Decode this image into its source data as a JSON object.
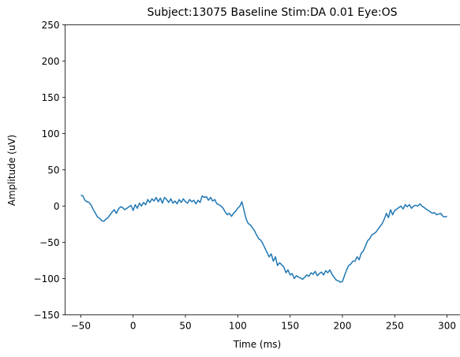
{
  "chart_data": {
    "type": "line",
    "title": "Subject:13075 Baseline Stim:DA 0.01 Eye:OS",
    "xlabel": "Time (ms)",
    "ylabel": "Amplitude (uV)",
    "xlim": [
      -65,
      315
    ],
    "ylim": [
      -150,
      250
    ],
    "xticks": [
      -50,
      0,
      50,
      100,
      150,
      200,
      250,
      300
    ],
    "yticks": [
      -150,
      -100,
      -50,
      0,
      50,
      100,
      150,
      200,
      250
    ],
    "grid": false,
    "series": [
      {
        "color": "#1f77b4",
        "x": [
          -50,
          -48,
          -46,
          -44,
          -42,
          -40,
          -38,
          -36,
          -34,
          -32,
          -30,
          -28,
          -26,
          -24,
          -22,
          -20,
          -18,
          -16,
          -14,
          -12,
          -10,
          -8,
          -6,
          -4,
          -2,
          0,
          2,
          4,
          6,
          8,
          10,
          12,
          14,
          16,
          18,
          20,
          22,
          24,
          26,
          28,
          30,
          32,
          34,
          36,
          38,
          40,
          42,
          44,
          46,
          48,
          50,
          52,
          54,
          56,
          58,
          60,
          62,
          64,
          66,
          68,
          70,
          72,
          74,
          76,
          78,
          80,
          82,
          84,
          86,
          88,
          90,
          92,
          94,
          96,
          98,
          100,
          102,
          104,
          106,
          108,
          110,
          112,
          114,
          116,
          118,
          120,
          122,
          124,
          126,
          128,
          130,
          132,
          134,
          136,
          138,
          140,
          142,
          144,
          146,
          148,
          150,
          152,
          154,
          156,
          158,
          160,
          162,
          164,
          166,
          168,
          170,
          172,
          174,
          176,
          178,
          180,
          182,
          184,
          186,
          188,
          190,
          192,
          194,
          196,
          198,
          200,
          202,
          204,
          206,
          208,
          210,
          212,
          214,
          216,
          218,
          220,
          222,
          224,
          226,
          228,
          230,
          232,
          234,
          236,
          238,
          240,
          242,
          244,
          246,
          248,
          250,
          252,
          254,
          256,
          258,
          260,
          262,
          264,
          266,
          268,
          270,
          272,
          274,
          276,
          278,
          280,
          282,
          284,
          286,
          288,
          290,
          292,
          294,
          296,
          298,
          300
        ],
        "values": [
          15,
          14,
          8,
          6,
          5,
          1,
          -5,
          -10,
          -15,
          -17,
          -20,
          -21,
          -18,
          -16,
          -12,
          -8,
          -5,
          -10,
          -4,
          -1,
          -2,
          -5,
          -3,
          -1,
          1,
          -6,
          2,
          -3,
          4,
          0,
          5,
          2,
          9,
          5,
          10,
          7,
          12,
          6,
          11,
          4,
          12,
          9,
          5,
          10,
          4,
          7,
          3,
          9,
          5,
          10,
          6,
          4,
          9,
          6,
          8,
          3,
          8,
          5,
          14,
          12,
          13,
          8,
          12,
          7,
          9,
          3,
          2,
          0,
          -3,
          -8,
          -12,
          -10,
          -14,
          -10,
          -7,
          -3,
          0,
          6,
          -6,
          -18,
          -24,
          -26,
          -30,
          -34,
          -40,
          -45,
          -47,
          -52,
          -58,
          -64,
          -70,
          -66,
          -76,
          -70,
          -82,
          -78,
          -81,
          -84,
          -92,
          -88,
          -95,
          -93,
          -100,
          -96,
          -98,
          -99,
          -101,
          -98,
          -95,
          -97,
          -92,
          -94,
          -90,
          -96,
          -93,
          -91,
          -95,
          -89,
          -92,
          -88,
          -94,
          -98,
          -102,
          -103,
          -105,
          -104,
          -96,
          -88,
          -82,
          -80,
          -76,
          -76,
          -70,
          -74,
          -65,
          -62,
          -55,
          -48,
          -45,
          -40,
          -38,
          -36,
          -32,
          -28,
          -24,
          -18,
          -10,
          -16,
          -5,
          -12,
          -6,
          -4,
          -2,
          0,
          -4,
          2,
          -1,
          2,
          -3,
          0,
          1,
          0,
          3,
          0,
          -2,
          -4,
          -6,
          -8,
          -10,
          -9,
          -12,
          -11,
          -10,
          -14,
          -15,
          -14
        ]
      }
    ]
  }
}
